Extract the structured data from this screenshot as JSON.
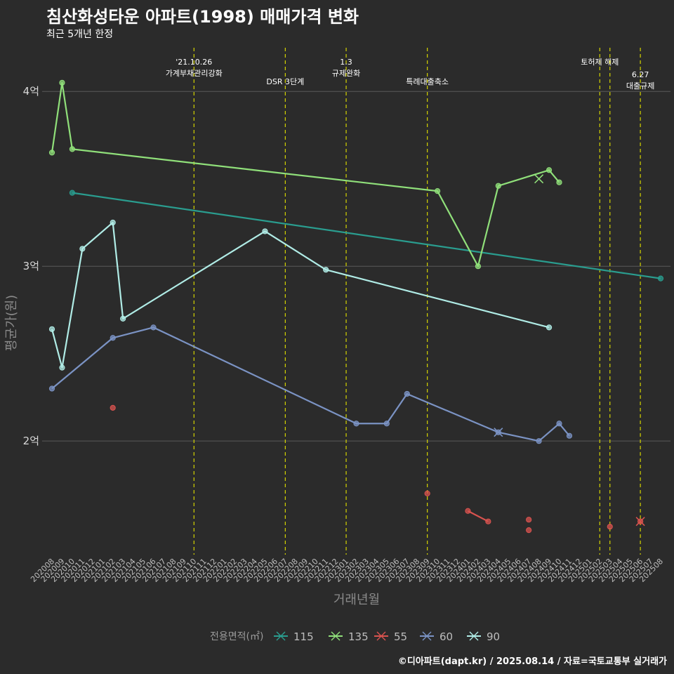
{
  "header": {
    "title": "침산화성타운 아파트(1998) 매매가격 변화",
    "subtitle": "최근 5개년 한정",
    "caption": "©디아파트(dapt.kr) / 2025.08.14 / 자료=국토교통부 실거래가"
  },
  "chart_data": {
    "type": "line",
    "xlabel": "거래년월",
    "ylabel": "평균가(원)",
    "ylim": [
      1.35,
      4.25
    ],
    "y_ticks": [
      {
        "value": 2,
        "label": "2억"
      },
      {
        "value": 3,
        "label": "3억"
      },
      {
        "value": 4,
        "label": "4억"
      }
    ],
    "grid": true,
    "legend_position": "bottom",
    "legend_title": "전용면적(㎡)",
    "categories": [
      "202008",
      "202009",
      "202010",
      "202011",
      "202012",
      "202101",
      "202102",
      "202103",
      "202104",
      "202105",
      "202106",
      "202107",
      "202108",
      "202109",
      "202110",
      "202111",
      "202112",
      "202201",
      "202202",
      "202203",
      "202204",
      "202205",
      "202206",
      "202207",
      "202208",
      "202209",
      "202210",
      "202211",
      "202212",
      "202301",
      "202302",
      "202303",
      "202304",
      "202305",
      "202306",
      "202307",
      "202308",
      "202309",
      "202310",
      "202311",
      "202312",
      "202401",
      "202402",
      "202403",
      "202404",
      "202405",
      "202406",
      "202407",
      "202408",
      "202409",
      "202410",
      "202411",
      "202412",
      "202501",
      "202502",
      "202503",
      "202504",
      "202505",
      "202506",
      "202507",
      "202508"
    ],
    "events": [
      {
        "x": "202110",
        "lines": [
          "'21.10.26",
          "가계부채관리강화"
        ],
        "row": 0
      },
      {
        "x": "202207",
        "lines": [
          "DSR 3단계"
        ],
        "row": 1
      },
      {
        "x": "202301",
        "lines": [
          "1.3",
          "규제완화"
        ],
        "row": 0
      },
      {
        "x": "202309",
        "lines": [
          "특례대출축소"
        ],
        "row": 1
      },
      {
        "x": "202502",
        "lines": [
          "토허제 해제"
        ],
        "row": 0
      },
      {
        "x": "202503",
        "lines": [],
        "row": 0
      },
      {
        "x": "202506",
        "lines": [
          "6.27",
          "대출규제"
        ],
        "row": 2
      }
    ],
    "series": [
      {
        "name": "115",
        "color": "#2a9d8f",
        "points": [
          [
            "202010",
            3.42
          ],
          [
            "202508",
            2.93
          ]
        ]
      },
      {
        "name": "135",
        "color": "#90e07a",
        "points": [
          [
            "202008",
            3.65
          ],
          [
            "202009",
            4.05
          ],
          [
            "202010",
            3.67
          ],
          [
            "202310",
            3.43
          ],
          [
            "202402",
            3.0
          ],
          [
            "202404",
            3.46
          ],
          [
            "202409",
            3.55
          ],
          [
            "202410",
            3.48
          ]
        ],
        "cross": [
          "202408",
          3.5
        ]
      },
      {
        "name": "55",
        "color": "#d9534f",
        "points": [
          [
            "202102",
            2.19
          ],
          [
            "202309",
            1.7
          ],
          [
            "202401",
            1.6
          ],
          [
            "202403",
            1.54
          ],
          [
            "202407",
            1.55
          ],
          [
            "202407",
            1.49
          ],
          [
            "202503",
            1.51
          ],
          [
            "202506",
            1.54
          ]
        ],
        "line_segments": [
          [
            2,
            3
          ]
        ],
        "cross": [
          "202506",
          1.54
        ]
      },
      {
        "name": "60",
        "color": "#7b93c4",
        "points": [
          [
            "202008",
            2.3
          ],
          [
            "202102",
            2.59
          ],
          [
            "202106",
            2.65
          ],
          [
            "202302",
            2.1
          ],
          [
            "202305",
            2.1
          ],
          [
            "202307",
            2.27
          ],
          [
            "202404",
            2.05
          ],
          [
            "202408",
            2.0
          ],
          [
            "202410",
            2.1
          ],
          [
            "202411",
            2.03
          ]
        ],
        "cross": [
          "202404",
          2.05
        ]
      },
      {
        "name": "90",
        "color": "#b0ece6",
        "points": [
          [
            "202008",
            2.64
          ],
          [
            "202009",
            2.42
          ],
          [
            "202011",
            3.1
          ],
          [
            "202102",
            3.25
          ],
          [
            "202103",
            2.7
          ],
          [
            "202205",
            3.2
          ],
          [
            "202211",
            2.98
          ],
          [
            "202409",
            2.65
          ]
        ]
      }
    ]
  }
}
